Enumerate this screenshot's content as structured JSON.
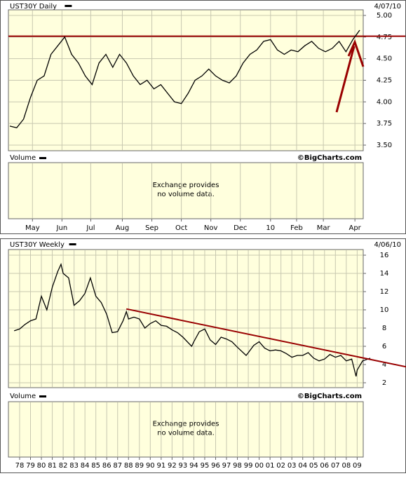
{
  "chart_data": [
    {
      "type": "line",
      "title": "UST30Y Daily",
      "date": "4/07/10",
      "volume_label": "Volume",
      "source": "©BigCharts.com",
      "volume_note": [
        "Exchange provides",
        "no volume data."
      ],
      "color": "#000000",
      "values": [
        3.72,
        3.7,
        3.8,
        4.05,
        4.25,
        4.3,
        4.55,
        4.65,
        4.75,
        4.55,
        4.45,
        4.3,
        4.2,
        4.45,
        4.55,
        4.4,
        4.55,
        4.45,
        4.3,
        4.2,
        4.25,
        4.15,
        4.2,
        4.1,
        4.0,
        3.98,
        4.1,
        4.25,
        4.3,
        4.38,
        4.3,
        4.25,
        4.22,
        4.3,
        4.45,
        4.55,
        4.6,
        4.7,
        4.72,
        4.6,
        4.55,
        4.6,
        4.58,
        4.65,
        4.7,
        4.62,
        4.58,
        4.62,
        4.7,
        4.58,
        4.72,
        4.83
      ],
      "xlim": [
        0,
        51
      ],
      "xticks": [
        {
          "value": 3.3,
          "label": "May"
        },
        {
          "value": 7.6,
          "label": "Jun"
        },
        {
          "value": 11.8,
          "label": "Jul"
        },
        {
          "value": 16.4,
          "label": "Aug"
        },
        {
          "value": 20.7,
          "label": "Sep"
        },
        {
          "value": 25,
          "label": "Oct"
        },
        {
          "value": 29.3,
          "label": "Nov"
        },
        {
          "value": 33.6,
          "label": "Dec"
        },
        {
          "value": 38,
          "label": "10"
        },
        {
          "value": 41.8,
          "label": "Feb"
        },
        {
          "value": 45.7,
          "label": "Mar"
        },
        {
          "value": 50.3,
          "label": "Apr"
        }
      ],
      "ylim": [
        3.5,
        5.0
      ],
      "yticks": [
        {
          "value": 3.5,
          "label": "3.50"
        },
        {
          "value": 3.75,
          "label": "3.75"
        },
        {
          "value": 4.0,
          "label": "4.00"
        },
        {
          "value": 4.25,
          "label": "4.25"
        },
        {
          "value": 4.5,
          "label": "4.50"
        },
        {
          "value": 4.75,
          "label": "4.75"
        },
        {
          "value": 5.0,
          "label": "5.00"
        }
      ],
      "hline": {
        "value": 4.76,
        "color": "#990000"
      },
      "grid": true
    },
    {
      "type": "line",
      "title": "UST30Y Weekly",
      "date": "4/06/10",
      "volume_label": "Volume",
      "source": "©BigCharts.com",
      "volume_note": [
        "Exchange provides",
        "no volume data."
      ],
      "color": "#000000",
      "x": [
        1977.5,
        1978,
        1978.5,
        1979,
        1979.5,
        1980,
        1980.5,
        1981,
        1981.5,
        1981.8,
        1982,
        1982.5,
        1983,
        1983.5,
        1984,
        1984.5,
        1985,
        1985.5,
        1986,
        1986.5,
        1987,
        1987.5,
        1987.8,
        1988,
        1988.5,
        1989,
        1989.5,
        1990,
        1990.5,
        1991,
        1991.5,
        1992,
        1992.5,
        1993,
        1993.8,
        1994,
        1994.5,
        1995,
        1995.5,
        1996,
        1996.5,
        1997,
        1997.5,
        1998,
        1998.8,
        1999,
        1999.5,
        2000,
        2000.5,
        2001,
        2001.5,
        2002,
        2002.5,
        2003,
        2003.5,
        2004,
        2004.5,
        2005,
        2005.5,
        2006,
        2006.5,
        2007,
        2007.5,
        2008,
        2008.5,
        2008.9,
        2009,
        2009.5,
        2010,
        2010.2
      ],
      "values": [
        7.7,
        7.9,
        8.4,
        8.8,
        9.0,
        11.5,
        10.0,
        12.5,
        14.2,
        15.0,
        14.0,
        13.5,
        10.5,
        11.0,
        11.8,
        13.5,
        11.5,
        10.8,
        9.5,
        7.5,
        7.6,
        8.8,
        9.8,
        9.0,
        9.2,
        9.0,
        8.0,
        8.5,
        8.8,
        8.3,
        8.2,
        7.8,
        7.5,
        7.0,
        6.0,
        6.5,
        7.6,
        7.9,
        6.7,
        6.2,
        7.0,
        6.8,
        6.5,
        5.9,
        5.0,
        5.3,
        6.1,
        6.5,
        5.8,
        5.5,
        5.6,
        5.5,
        5.2,
        4.8,
        5.0,
        5.0,
        5.3,
        4.7,
        4.4,
        4.6,
        5.1,
        4.8,
        5.0,
        4.4,
        4.6,
        2.7,
        3.4,
        4.4,
        4.6,
        4.7
      ],
      "xlim": [
        1977.1,
        2010.2
      ],
      "xticks": [
        {
          "value": 1978,
          "label": "78"
        },
        {
          "value": 1979,
          "label": "79"
        },
        {
          "value": 1980,
          "label": "80"
        },
        {
          "value": 1981,
          "label": "81"
        },
        {
          "value": 1982,
          "label": "82"
        },
        {
          "value": 1983,
          "label": "83"
        },
        {
          "value": 1984,
          "label": "84"
        },
        {
          "value": 1985,
          "label": "85"
        },
        {
          "value": 1986,
          "label": "86"
        },
        {
          "value": 1987,
          "label": "87"
        },
        {
          "value": 1988,
          "label": "88"
        },
        {
          "value": 1989,
          "label": "89"
        },
        {
          "value": 1990,
          "label": "90"
        },
        {
          "value": 1991,
          "label": "91"
        },
        {
          "value": 1992,
          "label": "92"
        },
        {
          "value": 1993,
          "label": "93"
        },
        {
          "value": 1994,
          "label": "94"
        },
        {
          "value": 1995,
          "label": "95"
        },
        {
          "value": 1996,
          "label": "96"
        },
        {
          "value": 1997,
          "label": "97"
        },
        {
          "value": 1998,
          "label": "98"
        },
        {
          "value": 1999,
          "label": "99"
        },
        {
          "value": 2000,
          "label": "00"
        },
        {
          "value": 2001,
          "label": "01"
        },
        {
          "value": 2002,
          "label": "02"
        },
        {
          "value": 2003,
          "label": "03"
        },
        {
          "value": 2004,
          "label": "04"
        },
        {
          "value": 2005,
          "label": "05"
        },
        {
          "value": 2006,
          "label": "06"
        },
        {
          "value": 2007,
          "label": "07"
        },
        {
          "value": 2008,
          "label": "08"
        },
        {
          "value": 2009,
          "label": "09"
        }
      ],
      "ylim": [
        2,
        16
      ],
      "yticks": [
        2,
        4,
        6,
        8,
        10,
        12,
        14,
        16
      ],
      "trend_line": {
        "x": [
          1987.8,
          2013.5
        ],
        "values": [
          10.1,
          3.75
        ],
        "color": "#990000"
      },
      "grid": true
    }
  ]
}
